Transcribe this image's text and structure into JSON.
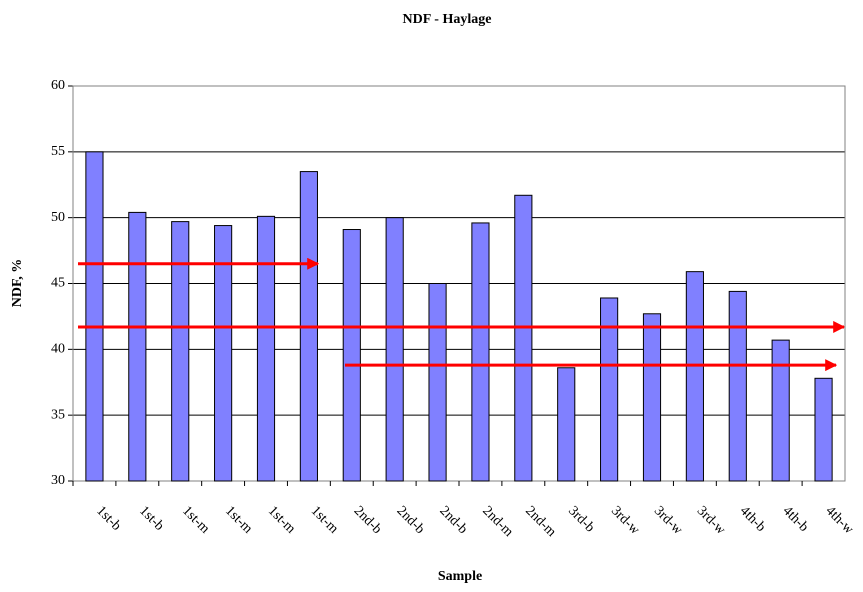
{
  "chart_data": {
    "type": "bar",
    "title": "NDF - Haylage",
    "x_label": "Sample",
    "y_label": "NDF, %",
    "categories": [
      "1st-b",
      "1st-b",
      "1st-m",
      "1st-m",
      "1st-m",
      "1st-m",
      "2nd-b",
      "2nd-b",
      "2nd-b",
      "2nd-m",
      "2nd-m",
      "3rd-b",
      "3rd-w",
      "3rd-w",
      "3rd-w",
      "4th-b",
      "4th-b",
      "4th-w"
    ],
    "values": [
      55,
      50.4,
      49.7,
      49.4,
      50.1,
      53.5,
      49.1,
      50.0,
      45.0,
      49.6,
      51.7,
      38.6,
      43.9,
      42.7,
      45.9,
      44.4,
      40.7,
      37.8
    ],
    "color": "#8080ff",
    "ylim": [
      30,
      60
    ],
    "yticks": [
      30,
      35,
      40,
      45,
      50,
      55,
      60
    ],
    "grid": true,
    "reference_lines": [
      {
        "value": 46.5,
        "color": "#ff0000"
      },
      {
        "value": 41.7,
        "color": "#ff0000"
      },
      {
        "value": 38.8,
        "color": "#ff0000"
      }
    ]
  }
}
